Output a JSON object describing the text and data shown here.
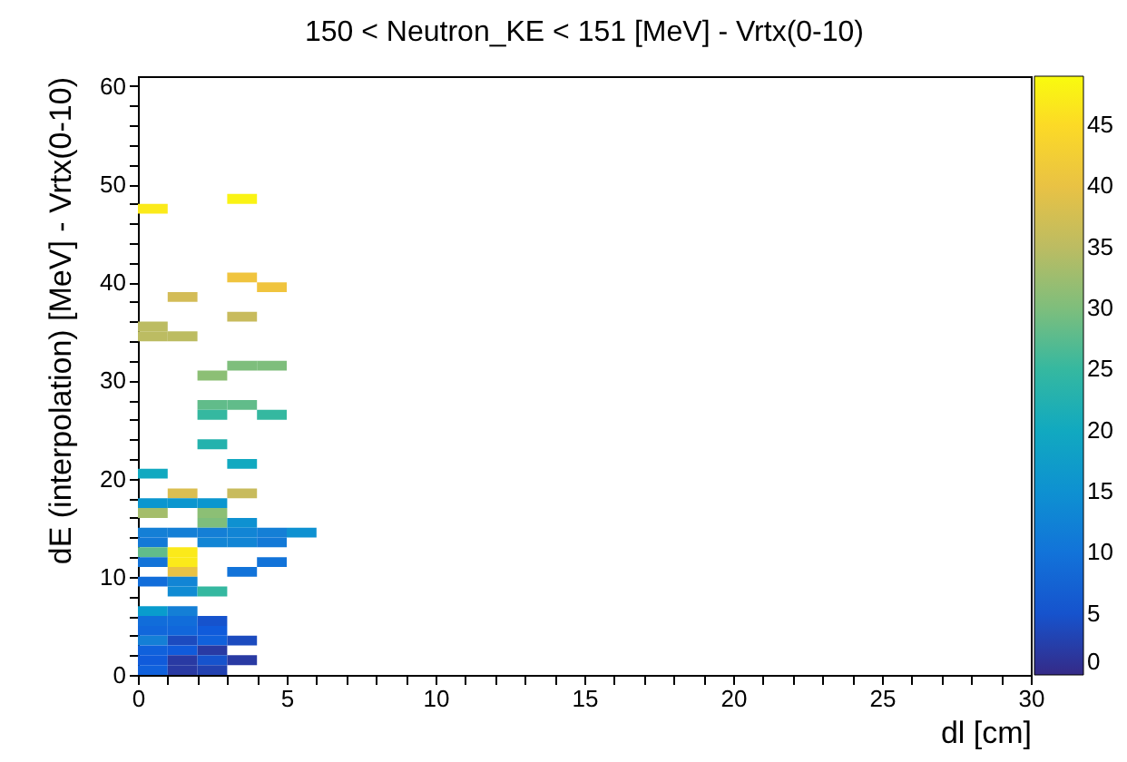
{
  "chart_data": {
    "type": "scatter",
    "title": "150 < Neutron_KE < 151 [MeV] - Vrtx(0-10)",
    "xlabel": "dl [cm]",
    "ylabel": "dE (interpolation) [MeV] - Vrtx(0-10)",
    "marker": "square",
    "xlim": [
      0,
      30
    ],
    "xticks": [
      0,
      {
        "value": 1,
        "label": null
      },
      {
        "value": 2,
        "label": null
      },
      {
        "value": 3,
        "label": null
      },
      {
        "value": 4,
        "label": null
      },
      5,
      {
        "value": 6,
        "label": null
      },
      {
        "value": 7,
        "label": null
      },
      {
        "value": 8,
        "label": null
      },
      {
        "value": 9,
        "label": null
      },
      10,
      {
        "value": 11,
        "label": null
      },
      {
        "value": 12,
        "label": null
      },
      {
        "value": 13,
        "label": null
      },
      {
        "value": 14,
        "label": null
      },
      15,
      {
        "value": 16,
        "label": null
      },
      {
        "value": 17,
        "label": null
      },
      {
        "value": 18,
        "label": null
      },
      {
        "value": 19,
        "label": null
      },
      20,
      {
        "value": 21,
        "label": null
      },
      {
        "value": 22,
        "label": null
      },
      {
        "value": 23,
        "label": null
      },
      {
        "value": 24,
        "label": null
      },
      25,
      {
        "value": 26,
        "label": null
      },
      {
        "value": 27,
        "label": null
      },
      {
        "value": 28,
        "label": null
      },
      {
        "value": 29,
        "label": null
      },
      30
    ],
    "ylim": [
      0,
      61
    ],
    "yticks": [
      0,
      {
        "value": 2,
        "label": null
      },
      {
        "value": 4,
        "label": null
      },
      {
        "value": 6,
        "label": null
      },
      {
        "value": 8,
        "label": null
      },
      10,
      {
        "value": 12,
        "label": null
      },
      {
        "value": 14,
        "label": null
      },
      {
        "value": 16,
        "label": null
      },
      {
        "value": 18,
        "label": null
      },
      20,
      {
        "value": 22,
        "label": null
      },
      {
        "value": 24,
        "label": null
      },
      {
        "value": 26,
        "label": null
      },
      {
        "value": 28,
        "label": null
      },
      30,
      {
        "value": 32,
        "label": null
      },
      {
        "value": 34,
        "label": null
      },
      {
        "value": 36,
        "label": null
      },
      {
        "value": 38,
        "label": null
      },
      40,
      {
        "value": 42,
        "label": null
      },
      {
        "value": 44,
        "label": null
      },
      {
        "value": 46,
        "label": null
      },
      {
        "value": 48,
        "label": null
      },
      50,
      {
        "value": 52,
        "label": null
      },
      {
        "value": 54,
        "label": null
      },
      {
        "value": 56,
        "label": null
      },
      {
        "value": 58,
        "label": null
      },
      60
    ],
    "clim": [
      0,
      49
    ],
    "cticks": [
      0,
      5,
      10,
      15,
      20,
      25,
      30,
      35,
      40,
      45
    ],
    "x": [
      3.5,
      0.5,
      3.5,
      4.5,
      1.5,
      3.5,
      0.5,
      0.5,
      1.5,
      3.5,
      4.5,
      2.5,
      2.5,
      3.5,
      2.5,
      4.5,
      2.5,
      3.5,
      0.5,
      1.5,
      3.5,
      0.5,
      1.5,
      2.5,
      0.5,
      2.5,
      2.5,
      3.5,
      0.5,
      1.5,
      2.5,
      3.5,
      4.5,
      5.5,
      0.5,
      2.5,
      3.5,
      4.5,
      0.5,
      1.5,
      0.5,
      1.5,
      4.5,
      1.5,
      3.5,
      0.5,
      1.5,
      1.5,
      2.5,
      0.5,
      1.5,
      0.5,
      1.5,
      2.5,
      0.5,
      1.5,
      2.5,
      0.5,
      1.5,
      2.5,
      3.5,
      0.5,
      1.5,
      2.5,
      0.5,
      1.5,
      2.5,
      3.5,
      0.5,
      1.5,
      2.5
    ],
    "values": [
      48.5,
      47.5,
      40.5,
      39.5,
      38.5,
      36.5,
      35.5,
      34.5,
      34.5,
      31.5,
      31.5,
      30.5,
      27.5,
      27.5,
      26.5,
      26.5,
      23.5,
      21.5,
      20.5,
      18.5,
      18.5,
      17.5,
      17.5,
      17.5,
      16.5,
      16.5,
      15.5,
      15.5,
      14.5,
      14.5,
      14.5,
      14.5,
      14.5,
      14.5,
      13.5,
      13.5,
      13.5,
      13.5,
      12.5,
      12.5,
      11.5,
      11.5,
      11.5,
      10.5,
      10.5,
      9.5,
      9.5,
      8.5,
      8.5,
      6.5,
      6.5,
      5.5,
      5.5,
      5.5,
      4.5,
      4.5,
      4.5,
      3.5,
      3.5,
      3.5,
      3.5,
      2.5,
      2.5,
      2.5,
      1.5,
      1.5,
      1.5,
      1.5,
      0.5,
      0.5,
      0.5
    ],
    "cvalues": [
      48,
      47,
      41,
      41,
      37,
      36,
      35,
      35,
      35,
      30,
      30,
      31,
      28,
      28,
      25,
      25,
      23,
      20,
      20,
      38,
      36,
      16,
      16,
      16,
      33,
      31,
      30,
      15,
      12,
      12,
      12,
      13,
      12,
      15,
      11,
      13,
      13,
      11,
      28,
      47,
      10,
      47,
      10,
      40,
      10,
      9,
      13,
      14,
      25,
      17,
      12,
      9,
      9,
      5,
      8,
      8,
      6,
      12,
      4,
      7,
      4,
      7,
      6,
      2,
      6,
      2,
      5,
      2,
      7,
      2,
      3
    ]
  }
}
